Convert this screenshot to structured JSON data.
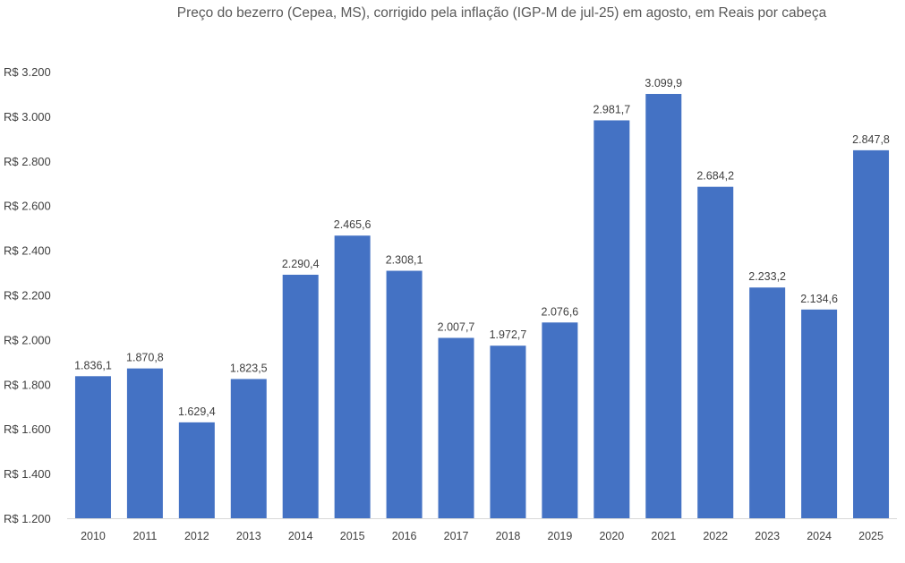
{
  "chart_data": {
    "type": "bar",
    "title": "Preço do bezerro (Cepea, MS), corrigido pela inflação (IGP-M de jul-25) em agosto, em Reais por cabeça",
    "xlabel": "",
    "ylabel": "",
    "ylim": [
      1200,
      3200
    ],
    "ytick_values": [
      1200,
      1400,
      1600,
      1800,
      2000,
      2200,
      2400,
      2600,
      2800,
      3000,
      3200
    ],
    "ytick_labels": [
      "R$ 1.200",
      "R$ 1.400",
      "R$ 1.600",
      "R$ 1.800",
      "R$ 2.000",
      "R$ 2.200",
      "R$ 2.400",
      "R$ 2.600",
      "R$ 2.800",
      "R$ 3.000",
      "R$ 3.200"
    ],
    "categories": [
      "2010",
      "2011",
      "2012",
      "2013",
      "2014",
      "2015",
      "2016",
      "2017",
      "2018",
      "2019",
      "2020",
      "2021",
      "2022",
      "2023",
      "2024",
      "2025"
    ],
    "values": [
      1836.1,
      1870.8,
      1629.4,
      1823.5,
      2290.4,
      2465.6,
      2308.1,
      2007.7,
      1972.7,
      2076.6,
      2981.7,
      3099.9,
      2684.2,
      2233.2,
      2134.6,
      2847.8
    ],
    "data_labels": [
      "1.836,1",
      "1.870,8",
      "1.629,4",
      "1.823,5",
      "2.290,4",
      "2.465,6",
      "2.308,1",
      "2.007,7",
      "1.972,7",
      "2.076,6",
      "2.981,7",
      "3.099,9",
      "2.684,2",
      "2.233,2",
      "2.134,6",
      "2.847,8"
    ],
    "bar_color": "#4472C4",
    "grid": false
  }
}
